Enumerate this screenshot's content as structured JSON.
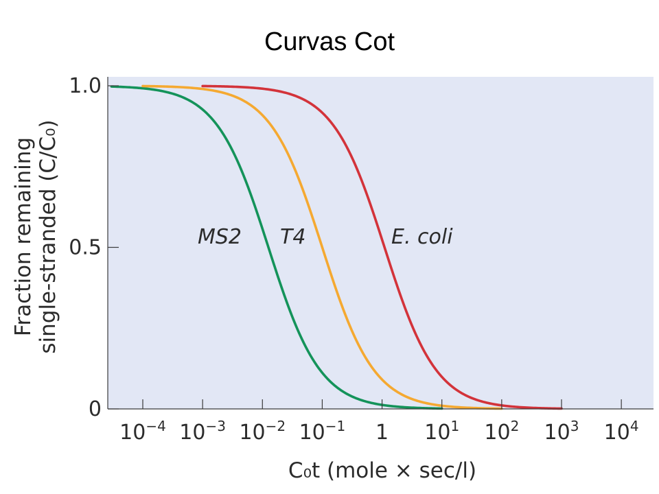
{
  "title": "Curvas Cot",
  "chart_data": {
    "type": "line",
    "xscale": "log",
    "xlim": [
      3e-05,
      100000
    ],
    "ylim": [
      0,
      1
    ],
    "xlabel": "C₀t (mole × sec/l)",
    "ylabel_line1": "Fraction remaining",
    "ylabel_line2": "single-stranded (C/C₀)",
    "x_ticks": [
      {
        "value": 0.0001,
        "base": "10",
        "exp": "−4"
      },
      {
        "value": 0.001,
        "base": "10",
        "exp": "−3"
      },
      {
        "value": 0.01,
        "base": "10",
        "exp": "−2"
      },
      {
        "value": 0.1,
        "base": "10",
        "exp": "−1"
      },
      {
        "value": 1,
        "base": "1",
        "exp": ""
      },
      {
        "value": 10,
        "base": "10",
        "exp": "1"
      },
      {
        "value": 100,
        "base": "10",
        "exp": "2"
      },
      {
        "value": 1000,
        "base": "10",
        "exp": "3"
      },
      {
        "value": 10000,
        "base": "10",
        "exp": "4"
      }
    ],
    "y_ticks": [
      {
        "value": 0,
        "label": "0"
      },
      {
        "value": 0.5,
        "label": "0.5"
      },
      {
        "value": 1,
        "label": "1.0"
      }
    ],
    "plot_background": "#e2e7f5",
    "grid": false,
    "series": [
      {
        "name": "MS2",
        "color": "#14935a",
        "half_cot": 0.0126,
        "x_start": 3e-05,
        "x_end": 10
      },
      {
        "name": "T4",
        "color": "#f5a931",
        "half_cot": 0.1,
        "x_start": 0.0001,
        "x_end": 100
      },
      {
        "name": "E. coli",
        "color": "#d3333a",
        "half_cot": 1.1,
        "x_start": 0.001,
        "x_end": 1000
      }
    ]
  }
}
